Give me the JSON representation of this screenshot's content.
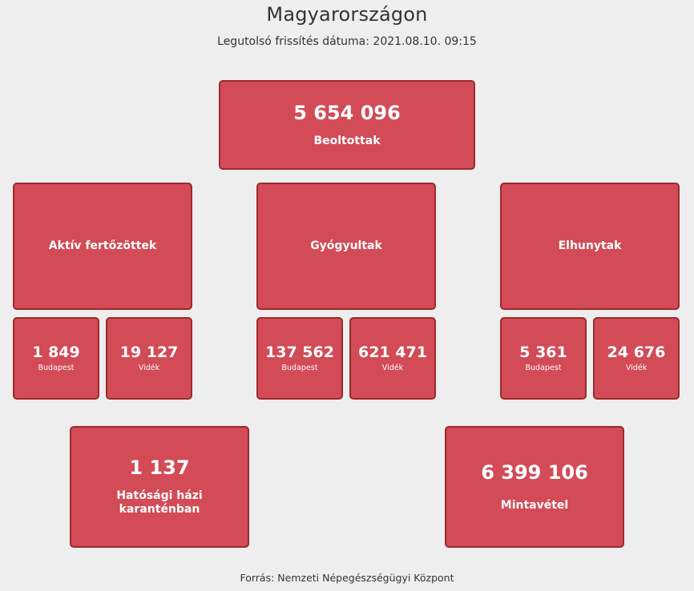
{
  "header": {
    "title": "Magyarországon",
    "updated": "Legutolsó frissítés dátuma: 2021.08.10. 09:15"
  },
  "vaccinated": {
    "value": "5 654 096",
    "label": "Beoltottak"
  },
  "active": {
    "label": "Aktív fertőzöttek",
    "budapest": {
      "value": "1 849",
      "label": "Budapest"
    },
    "countryside": {
      "value": "19 127",
      "label": "Vidék"
    }
  },
  "recovered": {
    "label": "Gyógyultak",
    "budapest": {
      "value": "137 562",
      "label": "Budapest"
    },
    "countryside": {
      "value": "621 471",
      "label": "Vidék"
    }
  },
  "deceased": {
    "label": "Elhunytak",
    "budapest": {
      "value": "5 361",
      "label": "Budapest"
    },
    "countryside": {
      "value": "24 676",
      "label": "Vidék"
    }
  },
  "quarantine": {
    "value": "1 137",
    "label": "Hatósági házi karanténban"
  },
  "samples": {
    "value": "6 399 106",
    "label": "Mintavétel"
  },
  "footer": {
    "source": "Forrás: Nemzeti Népegészségügyi Központ"
  },
  "colors": {
    "card_fill": "#d24b56",
    "card_border": "#9c2a2e",
    "background": "#eeeeee"
  }
}
